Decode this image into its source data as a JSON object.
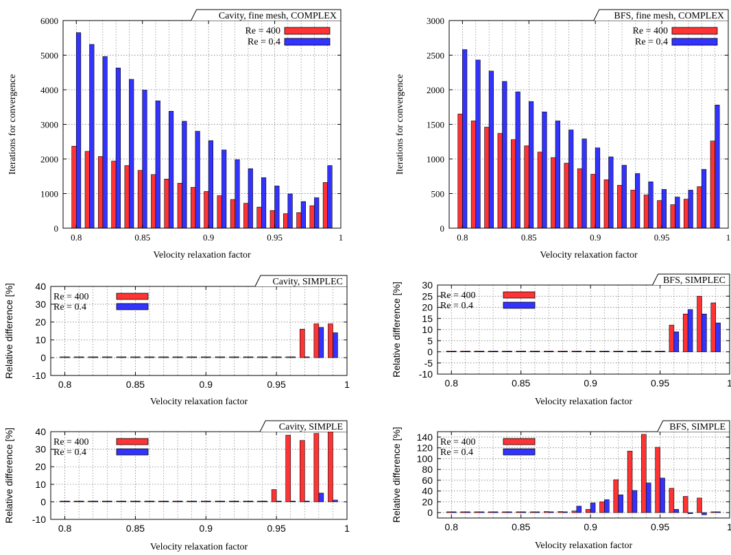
{
  "colors": {
    "re400_fill": "#ff3333",
    "re04_fill": "#3333ff",
    "re400_top": "#ffaaaa",
    "re04_top": "#aaaaff",
    "grid": "#666666"
  },
  "chart_data": [
    {
      "type": "bar",
      "title": "Cavity, fine mesh, COMPLEX",
      "xlabel": "Velocity relaxation factor",
      "ylabel": "Iterations for convergence",
      "xlim": [
        0.79,
        1.0
      ],
      "ylim": [
        0,
        6000
      ],
      "xticks": [
        0.8,
        0.85,
        0.9,
        0.95,
        1
      ],
      "xtick_labels": [
        "0.8",
        "0.85",
        "0.9",
        "0.95",
        "1"
      ],
      "yticks": [
        0,
        1000,
        2000,
        3000,
        4000,
        5000,
        6000
      ],
      "ytick_labels": [
        "0",
        "1000",
        "2000",
        "3000",
        "4000",
        "5000",
        "6000"
      ],
      "grid": true,
      "legend": "top-right",
      "x": [
        0.8,
        0.81,
        0.82,
        0.83,
        0.84,
        0.85,
        0.86,
        0.87,
        0.88,
        0.89,
        0.9,
        0.91,
        0.92,
        0.93,
        0.94,
        0.95,
        0.96,
        0.97,
        0.98,
        0.99
      ],
      "series": [
        {
          "name": "Re = 400",
          "values": [
            2370,
            2220,
            2070,
            1940,
            1810,
            1670,
            1550,
            1420,
            1300,
            1180,
            1060,
            940,
            830,
            720,
            610,
            510,
            420,
            450,
            650,
            1320
          ]
        },
        {
          "name": "Re = 0.4",
          "values": [
            5650,
            5310,
            4960,
            4630,
            4300,
            3990,
            3680,
            3380,
            3090,
            2800,
            2530,
            2260,
            1980,
            1720,
            1460,
            1220,
            990,
            770,
            880,
            1810
          ]
        }
      ]
    },
    {
      "type": "bar",
      "title": "BFS, fine mesh, COMPLEX",
      "xlabel": "Velocity relaxation factor",
      "ylabel": "Iterations for convergence",
      "xlim": [
        0.79,
        1.0
      ],
      "ylim": [
        0,
        3000
      ],
      "xticks": [
        0.8,
        0.85,
        0.9,
        0.95,
        1
      ],
      "xtick_labels": [
        "0.8",
        "0.85",
        "0.9",
        "0.95",
        "1"
      ],
      "yticks": [
        0,
        500,
        1000,
        1500,
        2000,
        2500,
        3000
      ],
      "ytick_labels": [
        "0",
        "500",
        "1000",
        "1500",
        "2000",
        "2500",
        "3000"
      ],
      "grid": true,
      "legend": "top-right",
      "x": [
        0.8,
        0.81,
        0.82,
        0.83,
        0.84,
        0.85,
        0.86,
        0.87,
        0.88,
        0.89,
        0.9,
        0.91,
        0.92,
        0.93,
        0.94,
        0.95,
        0.96,
        0.97,
        0.98,
        0.99
      ],
      "series": [
        {
          "name": "Re = 400",
          "values": [
            1650,
            1550,
            1460,
            1370,
            1280,
            1190,
            1100,
            1020,
            940,
            860,
            780,
            700,
            620,
            550,
            480,
            400,
            340,
            420,
            600,
            1260
          ]
        },
        {
          "name": "Re = 0.4",
          "values": [
            2580,
            2430,
            2270,
            2120,
            1970,
            1830,
            1680,
            1550,
            1420,
            1290,
            1160,
            1030,
            910,
            790,
            670,
            560,
            450,
            550,
            850,
            1780
          ]
        }
      ]
    },
    {
      "type": "bar",
      "title": "Cavity, SIMPLEC",
      "xlabel": "Velocity relaxation factor",
      "ylabel": "Relative difference [%]",
      "xlim": [
        0.79,
        1.0
      ],
      "ylim": [
        -10,
        40
      ],
      "xticks": [
        0.8,
        0.85,
        0.9,
        0.95,
        1
      ],
      "xtick_labels": [
        "0.8",
        "0.85",
        "0.9",
        "0.95",
        "1"
      ],
      "yticks": [
        -10,
        0,
        10,
        20,
        30,
        40
      ],
      "ytick_labels": [
        "-10",
        "0",
        "10",
        "20",
        "30",
        "40"
      ],
      "grid": true,
      "legend": "top-left",
      "x": [
        0.8,
        0.81,
        0.82,
        0.83,
        0.84,
        0.85,
        0.86,
        0.87,
        0.88,
        0.89,
        0.9,
        0.91,
        0.92,
        0.93,
        0.94,
        0.95,
        0.96,
        0.97,
        0.98,
        0.99
      ],
      "series": [
        {
          "name": "Re = 400",
          "values": [
            0,
            0,
            0,
            0,
            0,
            0,
            0,
            0,
            0,
            0,
            0,
            0,
            0,
            0,
            0,
            0,
            0,
            16,
            19,
            19
          ]
        },
        {
          "name": "Re = 0.4",
          "values": [
            0,
            0,
            0,
            0,
            0,
            0,
            0,
            0,
            0,
            0,
            0,
            0,
            0,
            0,
            0,
            0,
            0,
            0,
            17,
            14
          ]
        }
      ]
    },
    {
      "type": "bar",
      "title": "BFS, SIMPLEC",
      "xlabel": "Velocity relaxation factor",
      "ylabel": "Relative difference [%]",
      "xlim": [
        0.79,
        1.0
      ],
      "ylim": [
        -10,
        30
      ],
      "xticks": [
        0.8,
        0.85,
        0.9,
        0.95,
        1
      ],
      "xtick_labels": [
        "0.8",
        "0.85",
        "0.9",
        "0.95",
        "1"
      ],
      "yticks": [
        -10,
        -5,
        0,
        5,
        10,
        15,
        20,
        25,
        30
      ],
      "ytick_labels": [
        "-10",
        "-5",
        "0",
        "5",
        "10",
        "15",
        "20",
        "25",
        "30"
      ],
      "grid": true,
      "legend": "top-left",
      "x": [
        0.8,
        0.81,
        0.82,
        0.83,
        0.84,
        0.85,
        0.86,
        0.87,
        0.88,
        0.89,
        0.9,
        0.91,
        0.92,
        0.93,
        0.94,
        0.95,
        0.96,
        0.97,
        0.98,
        0.99
      ],
      "series": [
        {
          "name": "Re = 400",
          "values": [
            0,
            0,
            0,
            0,
            0,
            0,
            0,
            0,
            0,
            0,
            0,
            0,
            0,
            0,
            0,
            0,
            12,
            17,
            25,
            22
          ]
        },
        {
          "name": "Re = 0.4",
          "values": [
            0,
            0,
            0,
            0,
            0,
            0,
            0,
            0,
            0,
            0,
            0,
            0,
            0,
            0,
            0,
            0,
            9,
            19,
            17,
            13
          ]
        }
      ]
    },
    {
      "type": "bar",
      "title": "Cavity, SIMPLE",
      "xlabel": "Velocity relaxation factor",
      "ylabel": "Relative difference [%]",
      "xlim": [
        0.79,
        1.0
      ],
      "ylim": [
        -10,
        40
      ],
      "xticks": [
        0.8,
        0.85,
        0.9,
        0.95,
        1
      ],
      "xtick_labels": [
        "0.8",
        "0.85",
        "0.9",
        "0.95",
        "1"
      ],
      "yticks": [
        -10,
        0,
        10,
        20,
        30,
        40
      ],
      "ytick_labels": [
        "-10",
        "0",
        "10",
        "20",
        "30",
        "40"
      ],
      "grid": true,
      "legend": "top-left",
      "x": [
        0.8,
        0.81,
        0.82,
        0.83,
        0.84,
        0.85,
        0.86,
        0.87,
        0.88,
        0.89,
        0.9,
        0.91,
        0.92,
        0.93,
        0.94,
        0.95,
        0.96,
        0.97,
        0.98,
        0.99
      ],
      "series": [
        {
          "name": "Re = 400",
          "values": [
            0,
            0,
            0,
            0,
            0,
            0,
            0,
            0,
            0,
            0,
            0,
            0,
            0,
            0,
            0,
            7,
            38,
            35,
            39,
            40
          ]
        },
        {
          "name": "Re = 0.4",
          "values": [
            0,
            0,
            0,
            0,
            0,
            0,
            0,
            0,
            0,
            0,
            0,
            0,
            0,
            0,
            0,
            0,
            0,
            0,
            5,
            1
          ]
        }
      ]
    },
    {
      "type": "bar",
      "title": "BFS, SIMPLE",
      "xlabel": "Velocity relaxation factor",
      "ylabel": "Relative difference [%]",
      "xlim": [
        0.79,
        1.0
      ],
      "ylim": [
        -10,
        150
      ],
      "xticks": [
        0.8,
        0.85,
        0.9,
        0.95,
        1
      ],
      "xtick_labels": [
        "0.8",
        "0.85",
        "0.9",
        "0.95",
        "1"
      ],
      "yticks": [
        0,
        20,
        40,
        60,
        80,
        100,
        120,
        140
      ],
      "ytick_labels": [
        "0",
        "20",
        "40",
        "60",
        "80",
        "100",
        "120",
        "140"
      ],
      "grid": true,
      "legend": "top-left",
      "x": [
        0.8,
        0.81,
        0.82,
        0.83,
        0.84,
        0.85,
        0.86,
        0.87,
        0.88,
        0.89,
        0.9,
        0.91,
        0.92,
        0.93,
        0.94,
        0.95,
        0.96,
        0.97,
        0.98,
        0.99
      ],
      "series": [
        {
          "name": "Re = 400",
          "values": [
            0,
            0,
            0,
            0,
            0,
            1,
            1,
            2,
            2,
            3,
            6,
            20,
            61,
            114,
            145,
            121,
            45,
            30,
            27,
            0
          ]
        },
        {
          "name": "Re = 0.4",
          "values": [
            0,
            0,
            0,
            0,
            0,
            0,
            1,
            1,
            1,
            12,
            18,
            24,
            33,
            41,
            55,
            64,
            6,
            -2,
            -4,
            0
          ]
        }
      ]
    }
  ]
}
